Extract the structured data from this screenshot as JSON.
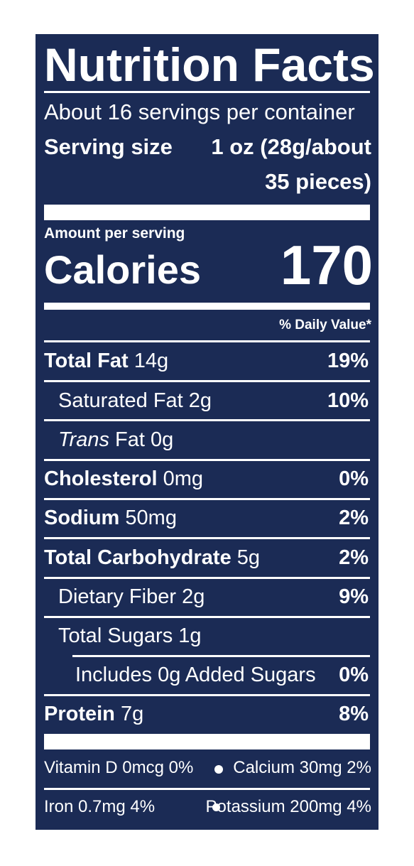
{
  "title": "Nutrition Facts",
  "servings_per_container": "About 16 servings per container",
  "serving_size_label": "Serving size",
  "serving_size_value_line1": "1 oz (28g/about",
  "serving_size_value_line2": "35 pieces)",
  "amount_per_serving": "Amount per serving",
  "calories_label": "Calories",
  "calories_value": "170",
  "daily_value_header": "% Daily Value*",
  "nutrients": [
    {
      "name": "Total Fat",
      "amount": "14g",
      "dv": "19%"
    },
    {
      "name": "Saturated Fat",
      "amount": "2g",
      "dv": "10%"
    },
    {
      "name_italic": "Trans",
      "name": "Fat",
      "amount": "0g",
      "dv": ""
    },
    {
      "name": "Cholesterol",
      "amount": "0mg",
      "dv": "0%"
    },
    {
      "name": "Sodium",
      "amount": "50mg",
      "dv": "2%"
    },
    {
      "name": "Total Carbohydrate",
      "amount": "5g",
      "dv": "2%"
    },
    {
      "name": "Dietary Fiber",
      "amount": "2g",
      "dv": "9%"
    },
    {
      "name": "Total Sugars",
      "amount": "1g",
      "dv": ""
    },
    {
      "name": "Includes 0g Added Sugars",
      "amount": "",
      "dv": "0%"
    },
    {
      "name": "Protein",
      "amount": "7g",
      "dv": "8%"
    }
  ],
  "micronutrients": [
    {
      "label": "Vitamin D 0mcg 0%"
    },
    {
      "label": "Calcium 30mg 2%"
    },
    {
      "label": "Iron 0.7mg 4%"
    },
    {
      "label": "Potassium 200mg 4%"
    }
  ],
  "colors": {
    "panel": "#1b2b55",
    "text": "#ffffff",
    "background": "#ffffff"
  }
}
